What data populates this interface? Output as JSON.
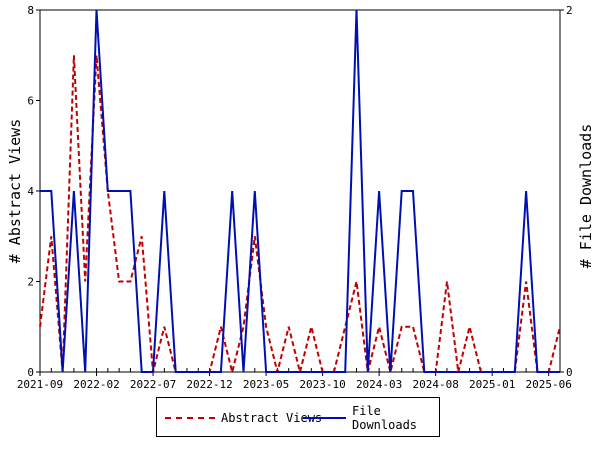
{
  "chart_data": {
    "type": "line",
    "x_ticks": [
      "2021-09",
      "2022-02",
      "2022-07",
      "2022-12",
      "2023-05",
      "2023-10",
      "2024-03",
      "2024-08",
      "2025-01",
      "2025-06"
    ],
    "ylabel_left": "# Abstract Views",
    "ylabel_right": "# File Downloads",
    "ylim_left": [
      0,
      8
    ],
    "ylim_right": [
      0,
      2
    ],
    "yticks_left": [
      "0",
      "2",
      "4",
      "6",
      "8"
    ],
    "yticks_right": [
      "0",
      "2"
    ],
    "x": [
      "2021-09",
      "2021-10",
      "2021-11",
      "2021-12",
      "2022-01",
      "2022-02",
      "2022-03",
      "2022-04",
      "2022-05",
      "2022-06",
      "2022-07",
      "2022-08",
      "2022-09",
      "2022-10",
      "2022-11",
      "2022-12",
      "2023-01",
      "2023-02",
      "2023-03",
      "2023-04",
      "2023-05",
      "2023-06",
      "2023-07",
      "2023-08",
      "2023-09",
      "2023-10",
      "2023-11",
      "2023-12",
      "2024-01",
      "2024-02",
      "2024-03",
      "2024-04",
      "2024-05",
      "2024-06",
      "2024-07",
      "2024-08",
      "2024-09",
      "2024-10",
      "2024-11",
      "2024-12",
      "2025-01",
      "2025-02",
      "2025-03",
      "2025-04",
      "2025-05",
      "2025-06",
      "2025-07"
    ],
    "series": [
      {
        "name": "Abstract Views",
        "axis": "left",
        "color": "#c00000",
        "style": "dashed",
        "values": [
          1,
          3,
          0,
          7,
          2,
          7,
          4,
          2,
          2,
          3,
          0,
          1,
          0,
          0,
          0,
          0,
          1,
          0,
          1,
          3,
          1,
          0,
          1,
          0,
          1,
          0,
          0,
          1,
          2,
          0,
          1,
          0,
          1,
          1,
          0,
          0,
          2,
          0,
          1,
          0,
          0,
          0,
          0,
          2,
          0,
          0,
          1
        ]
      },
      {
        "name": "File Downloads",
        "axis": "right",
        "color": "#0010b0",
        "style": "solid",
        "values": [
          1,
          1,
          0,
          1,
          0,
          2,
          1,
          1,
          1,
          0,
          0,
          1,
          0,
          0,
          0,
          0,
          0,
          1,
          0,
          1,
          0,
          0,
          0,
          0,
          0,
          0,
          0,
          0,
          2,
          0,
          1,
          0,
          1,
          1,
          0,
          0,
          0,
          0,
          0,
          0,
          0,
          0,
          0,
          1,
          0,
          0,
          0
        ]
      }
    ],
    "legend_position": "bottom",
    "grid": false
  }
}
